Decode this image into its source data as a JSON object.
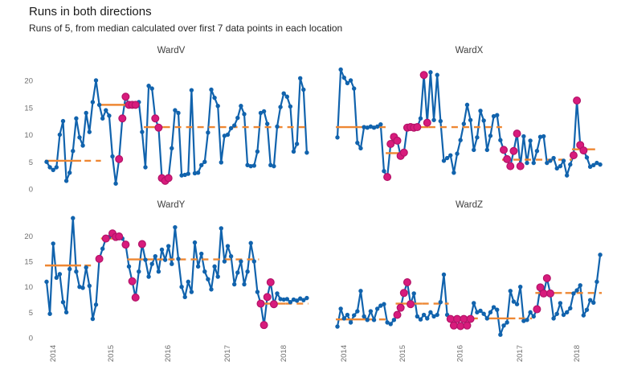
{
  "header": {
    "title": "Runs in both directions",
    "subtitle": "Runs of 5, from median calculated over first 7 data points in each location"
  },
  "colors": {
    "line": "#1163ad",
    "highlight": "#d81b7c",
    "highlight_stroke": "#b31368",
    "median": "#ee8733",
    "tick_text": "#6e6e6e",
    "panel_title_text": "#404040",
    "title_text": "#1a1a1a",
    "background": "#ffffff"
  },
  "chart_data": {
    "type": "line",
    "title": "Runs in both directions",
    "subtitle": "Runs of 5, from median calculated over first 7 data points in each location",
    "grid": false,
    "legend": false,
    "x_axis": {
      "tick_labels": [
        "2014",
        "2015",
        "2016",
        "2017",
        "2018"
      ],
      "tick_positions_index": [
        1.7,
        19.3,
        36.6,
        54.6,
        71.7
      ],
      "labels_rotated_degrees": -90,
      "labels_shown_on_bottom_row_only": true
    },
    "y_axis": {
      "ticks": [
        0,
        5,
        10,
        15,
        20
      ],
      "range_top_row": [
        0,
        23
      ],
      "range_bottom_row": [
        0,
        25
      ],
      "labels_shown_on_left_column_only": true
    },
    "panels": [
      {
        "title": "WardV",
        "values": [
          5,
          4,
          3.5,
          4,
          10,
          12.5,
          1.5,
          3,
          7,
          13,
          9.5,
          8,
          14,
          10.5,
          16,
          20,
          15.5,
          13,
          14.5,
          13.5,
          6,
          1,
          5.5,
          13,
          17,
          15.5,
          15.5,
          15.5,
          16,
          10.5,
          4,
          19,
          18.5,
          13,
          11.3,
          2,
          1.5,
          2,
          7.5,
          14.5,
          14,
          2.5,
          2.6,
          2.8,
          18.2,
          2.9,
          3,
          4.4,
          5,
          10.4,
          18.3,
          16.8,
          15.3,
          4.9,
          9.8,
          10,
          11.2,
          11.7,
          13.1,
          15.3,
          13.8,
          4.4,
          4.2,
          4.3,
          6.9,
          14,
          14.3,
          12,
          4.4,
          4.2,
          11.5,
          15.1,
          17.6,
          17,
          15.2,
          6.9,
          8.3,
          20.4,
          18.3,
          6.7
        ],
        "highlighted_indices": [
          22,
          23,
          24,
          25,
          26,
          27,
          33,
          34,
          35,
          36,
          37
        ],
        "median_segments": [
          {
            "from": 0,
            "to": 10,
            "level": 5.2,
            "dashed": false
          },
          {
            "from": 12,
            "to": 16,
            "level": 5.2,
            "dashed": true
          },
          {
            "from": 17,
            "to": 25,
            "level": 15.5,
            "dashed": false
          },
          {
            "from": 26,
            "to": 28,
            "level": 15.5,
            "dashed": true
          },
          {
            "from": 30,
            "to": 35,
            "level": 11.4,
            "dashed": false
          },
          {
            "from": 36,
            "to": 79,
            "level": 11.4,
            "dashed": true
          }
        ]
      },
      {
        "title": "WardX",
        "values": [
          9.5,
          22,
          20.5,
          19.5,
          20,
          18.5,
          8.5,
          7.5,
          11.4,
          11.3,
          11.5,
          11.3,
          11.5,
          11.9,
          3.3,
          2.2,
          8.3,
          9.6,
          8.9,
          6.1,
          6.7,
          11.3,
          11.4,
          11.3,
          11.4,
          13,
          21,
          12.2,
          21.5,
          12.7,
          21,
          12.5,
          5.2,
          5.7,
          6.2,
          3,
          6.5,
          9,
          12,
          15.5,
          12.7,
          7.2,
          9.5,
          14.4,
          12.6,
          7.2,
          9.8,
          13.4,
          13.6,
          9,
          7.2,
          5.5,
          4.2,
          7,
          10.2,
          4.2,
          9.7,
          4.8,
          8.9,
          4.8,
          7,
          9.6,
          9.7,
          4.8,
          5.2,
          5.7,
          3.8,
          4.2,
          5.2,
          2.5,
          4.5,
          6.2,
          16.3,
          8.1,
          7.1,
          5.8,
          4.1,
          4.4,
          4.8,
          4.5
        ],
        "highlighted_indices": [
          15,
          16,
          17,
          18,
          19,
          20,
          21,
          22,
          23,
          24,
          26,
          27,
          50,
          51,
          52,
          53,
          54,
          55,
          71,
          72,
          73,
          74
        ],
        "median_segments": [
          {
            "from": 0,
            "to": 14,
            "level": 11.4,
            "dashed": false
          },
          {
            "from": 15,
            "to": 20,
            "level": 6.6,
            "dashed": false
          },
          {
            "from": 21,
            "to": 27,
            "level": 11.4,
            "dashed": false
          },
          {
            "from": 28,
            "to": 49,
            "level": 11.4,
            "dashed": true
          },
          {
            "from": 50,
            "to": 70,
            "level": 5.4,
            "dashed": true
          },
          {
            "from": 71,
            "to": 77,
            "level": 7.3,
            "dashed": false
          }
        ]
      },
      {
        "title": "WardY",
        "values": [
          11,
          4.7,
          18.5,
          11.8,
          12.5,
          7,
          5,
          13.5,
          23.5,
          13,
          10,
          9.8,
          13.8,
          10.2,
          3.7,
          6.5,
          15.5,
          17.5,
          19.5,
          19.8,
          20.5,
          19.8,
          19.9,
          19.5,
          18.3,
          14,
          11.1,
          7.9,
          13,
          18.4,
          15.3,
          12,
          14.5,
          16,
          13,
          17.3,
          15.3,
          18,
          14.5,
          21.7,
          15.5,
          10,
          8,
          11,
          9,
          18.7,
          14,
          16.5,
          13,
          11.5,
          9.5,
          14,
          12,
          21.5,
          15,
          18,
          16,
          10.5,
          12.8,
          15,
          10.5,
          13,
          18.6,
          15,
          9,
          6.7,
          2.5,
          8,
          10.9,
          6.6,
          8.7,
          7.6,
          7.5,
          7.6,
          7,
          7.5,
          7.3,
          7.7,
          7.4,
          7.8
        ],
        "highlighted_indices": [
          16,
          18,
          20,
          21,
          22,
          24,
          26,
          27,
          29,
          65,
          66,
          67,
          68,
          69
        ],
        "median_segments": [
          {
            "from": 0,
            "to": 10,
            "level": 14.2,
            "dashed": false
          },
          {
            "from": 12,
            "to": 14,
            "level": 14.2,
            "dashed": true
          },
          {
            "from": 17,
            "to": 23,
            "level": 19.5,
            "dashed": false
          },
          {
            "from": 25,
            "to": 32,
            "level": 15.4,
            "dashed": false
          },
          {
            "from": 34,
            "to": 64,
            "level": 15.4,
            "dashed": true
          },
          {
            "from": 65,
            "to": 72,
            "level": 6.7,
            "dashed": false
          },
          {
            "from": 73,
            "to": 79,
            "level": 6.7,
            "dashed": true
          }
        ]
      },
      {
        "title": "WardZ",
        "values": [
          2.2,
          5.7,
          3.8,
          4.5,
          3,
          4.4,
          5.2,
          9.2,
          4.2,
          3.5,
          5.2,
          3.5,
          5.7,
          6.3,
          6.6,
          3,
          2.7,
          3.5,
          4.5,
          5.9,
          8.8,
          10.9,
          6.6,
          8.7,
          4.2,
          3.6,
          4.5,
          3.8,
          5,
          4.2,
          4.5,
          7,
          12.4,
          4.5,
          3.7,
          2.4,
          3.7,
          2.3,
          3.7,
          2.4,
          3.7,
          6.8,
          5,
          5.3,
          4.7,
          3.8,
          5,
          6,
          5.5,
          0.6,
          2.4,
          3,
          9.2,
          7.1,
          6.6,
          10,
          3.3,
          3.5,
          5,
          4.2,
          5.6,
          9.9,
          8.7,
          11.7,
          8.7,
          3.8,
          4.7,
          6.8,
          4.5,
          5,
          5.8,
          8.7,
          9.3,
          10.3,
          4.4,
          5.5,
          7.4,
          6.9,
          11,
          16.3
        ],
        "highlighted_indices": [
          18,
          19,
          20,
          21,
          22,
          34,
          35,
          36,
          37,
          38,
          39,
          40,
          60,
          61,
          62,
          63,
          64
        ],
        "median_segments": [
          {
            "from": 0,
            "to": 10,
            "level": 3.6,
            "dashed": false
          },
          {
            "from": 13,
            "to": 15,
            "level": 3.6,
            "dashed": true
          },
          {
            "from": 18,
            "to": 25,
            "level": 6.7,
            "dashed": false
          },
          {
            "from": 26,
            "to": 33,
            "level": 6.7,
            "dashed": true
          },
          {
            "from": 34,
            "to": 42,
            "level": 3.8,
            "dashed": true
          },
          {
            "from": 45,
            "to": 53,
            "level": 3.8,
            "dashed": false
          },
          {
            "from": 55,
            "to": 58,
            "level": 3.8,
            "dashed": true
          },
          {
            "from": 60,
            "to": 67,
            "level": 8.8,
            "dashed": false
          },
          {
            "from": 69,
            "to": 79,
            "level": 8.8,
            "dashed": true
          }
        ]
      }
    ]
  }
}
